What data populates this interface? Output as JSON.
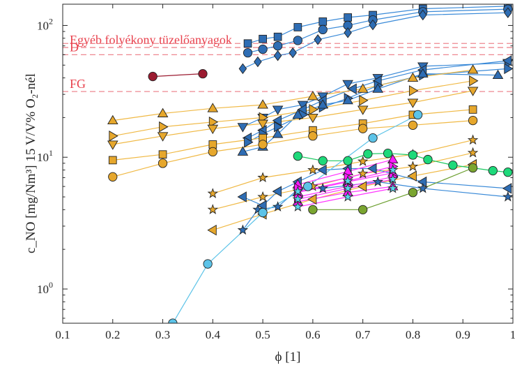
{
  "chart_data": {
    "type": "scatter",
    "xlabel": "ϕ [1]",
    "ylabel": "c_NO [mg/Nm³] 15 V/V% O₂-nél",
    "xlim": [
      0.1,
      1.0
    ],
    "ylim": [
      0.55,
      145
    ],
    "yscale": "log",
    "grid": false,
    "x_ticks": [
      "0.1",
      "0.2",
      "0.3",
      "0.4",
      "0.5",
      "0.6",
      "0.7",
      "0.8",
      "0.9",
      "1"
    ],
    "y_ticks": [
      {
        "value": 1,
        "label": "10",
        "exp": "0"
      },
      {
        "value": 10,
        "label": "10",
        "exp": "1"
      },
      {
        "value": 100,
        "label": "10",
        "exp": "2"
      }
    ],
    "reference_lines": [
      {
        "label": "Egyéb folyékony tüzelőanyagok",
        "y": 68,
        "color": "#ee8890",
        "text_color": "#e8404c"
      },
      {
        "label": "",
        "y": 73,
        "color": "#ee8890",
        "text_color": "#e8404c"
      },
      {
        "label": "D",
        "y": 60,
        "color": "#ee8890",
        "text_color": "#e8404c"
      },
      {
        "label": "FG",
        "y": 31.5,
        "color": "#ee8890",
        "text_color": "#e8404c"
      }
    ],
    "series": [
      {
        "marker": "square",
        "color": "#2e6db4",
        "line": "#3a8ad8",
        "x": [
          0.47,
          0.5,
          0.53,
          0.57,
          0.62,
          0.67,
          0.72,
          0.82,
          0.99
        ],
        "y": [
          73,
          79,
          82,
          97,
          107,
          115,
          120,
          134,
          140
        ]
      },
      {
        "marker": "circle",
        "color": "#2e6db4",
        "line": "#3a8ad8",
        "x": [
          0.47,
          0.5,
          0.53,
          0.57,
          0.62,
          0.67,
          0.72,
          0.82,
          0.99
        ],
        "y": [
          62,
          66,
          70,
          77,
          93,
          100,
          110,
          127,
          133
        ]
      },
      {
        "marker": "diamond",
        "color": "#2e6db4",
        "line": "#3a8ad8",
        "x": [
          0.46,
          0.49,
          0.53,
          0.56,
          0.61,
          0.67,
          0.72,
          0.82,
          0.99
        ],
        "y": [
          47,
          53,
          59,
          62,
          78,
          88,
          101,
          120,
          125
        ]
      },
      {
        "marker": "circle",
        "color": "#9b1b30",
        "line": "#9b1b30",
        "x": [
          0.28,
          0.38
        ],
        "y": [
          41,
          43
        ]
      },
      {
        "marker": "triangle-down",
        "color": "#2e6db4",
        "line": "#3a8ad8",
        "x": [
          0.46,
          0.5,
          0.53,
          0.58,
          0.62,
          0.67,
          0.73,
          0.82,
          0.99
        ],
        "y": [
          17,
          20,
          23,
          25,
          29,
          36,
          40,
          49,
          52
        ]
      },
      {
        "marker": "triangle-left",
        "color": "#2e6db4",
        "line": "#3a8ad8",
        "x": [
          0.47,
          0.5,
          0.53,
          0.58,
          0.62,
          0.68,
          0.73,
          0.82,
          0.99
        ],
        "y": [
          14,
          16,
          19,
          23,
          27,
          33,
          38,
          46,
          54
        ]
      },
      {
        "marker": "triangle-right",
        "color": "#2e6db4",
        "line": "#3a8ad8",
        "x": [
          0.47,
          0.5,
          0.53,
          0.58,
          0.62,
          0.67,
          0.73,
          0.82,
          0.99
        ],
        "y": [
          13,
          15,
          17,
          21,
          24,
          28,
          35,
          42,
          47
        ]
      },
      {
        "marker": "triangle-up",
        "color": "#2e6db4",
        "line": "#3a8ad8",
        "x": [
          0.46,
          0.5,
          0.53,
          0.57,
          0.62,
          0.67,
          0.73,
          0.82,
          0.97
        ],
        "y": [
          11,
          12,
          15,
          21,
          25,
          27,
          33,
          43,
          42
        ]
      },
      {
        "marker": "triangle-up",
        "color": "#e6a72c",
        "line": "#f0b945",
        "x": [
          0.2,
          0.3,
          0.4,
          0.5,
          0.6,
          0.7,
          0.8,
          0.92
        ],
        "y": [
          19,
          21.5,
          23.5,
          25,
          29,
          33,
          40,
          46
        ]
      },
      {
        "marker": "triangle-right",
        "color": "#e6a72c",
        "line": "#f0b945",
        "x": [
          0.2,
          0.3,
          0.4,
          0.5,
          0.6,
          0.7,
          0.8,
          0.92
        ],
        "y": [
          14.5,
          17,
          18.5,
          20,
          23,
          27,
          32,
          38
        ]
      },
      {
        "marker": "triangle-down",
        "color": "#e6a72c",
        "line": "#f0b945",
        "x": [
          0.2,
          0.3,
          0.4,
          0.5,
          0.6,
          0.7,
          0.8,
          0.92
        ],
        "y": [
          12.5,
          14.5,
          16.5,
          18,
          20,
          23,
          26,
          32
        ]
      },
      {
        "marker": "square",
        "color": "#e6a72c",
        "line": "#f0b945",
        "x": [
          0.2,
          0.3,
          0.4,
          0.5,
          0.6,
          0.7,
          0.8,
          0.92
        ],
        "y": [
          9.5,
          10.5,
          12.5,
          14,
          16,
          18,
          21,
          23
        ]
      },
      {
        "marker": "circle",
        "color": "#e6a72c",
        "line": "#f0b945",
        "x": [
          0.2,
          0.3,
          0.4,
          0.5,
          0.6,
          0.7,
          0.8,
          0.92
        ],
        "y": [
          7.1,
          9,
          11,
          12.5,
          14.5,
          16.5,
          17.5,
          19
        ]
      },
      {
        "marker": "triangle-left",
        "color": "#e6a72c",
        "line": "#f0b945",
        "x": [
          0.4,
          0.5,
          0.6,
          0.7,
          0.8,
          0.92
        ],
        "y": [
          2.8,
          3.7,
          4.8,
          6,
          7.2,
          8.8
        ]
      },
      {
        "marker": "star",
        "color": "#e6a72c",
        "line": "#f0b945",
        "x": [
          0.4,
          0.5,
          0.6,
          0.7,
          0.8,
          0.92
        ],
        "y": [
          4,
          5,
          6,
          7.5,
          8.5,
          10.8
        ]
      },
      {
        "marker": "star",
        "color": "#e6a72c",
        "line": "#f0b945",
        "x": [
          0.4,
          0.5,
          0.6,
          0.7,
          0.8,
          0.92
        ],
        "y": [
          5.3,
          7,
          8,
          9.3,
          10.5,
          13.5
        ]
      },
      {
        "marker": "triangle-left",
        "color": "#2e6db4",
        "line": "#3a8ad8",
        "x": [
          0.46,
          0.5,
          0.53,
          0.57,
          0.62,
          0.67,
          0.72,
          0.82,
          0.99
        ],
        "y": [
          5,
          4.3,
          5.5,
          6.5,
          8,
          8.2,
          8.2,
          6.5,
          5.8
        ]
      },
      {
        "marker": "star",
        "color": "#2e6db4",
        "line": "#3a8ad8",
        "x": [
          0.46,
          0.49,
          0.53,
          0.57,
          0.62,
          0.67,
          0.73,
          0.82,
          0.99
        ],
        "y": [
          2.8,
          4,
          4.2,
          5.7,
          5.8,
          6.1,
          6.5,
          5.8,
          5
        ]
      },
      {
        "marker": "circle",
        "color": "#1ed97a",
        "line": "#19c85f",
        "x": [
          0.57,
          0.62,
          0.67,
          0.71,
          0.75,
          0.8,
          0.83,
          0.88,
          0.96,
          0.99
        ],
        "y": [
          10.2,
          9.4,
          9.4,
          10.6,
          10.7,
          10.4,
          9.6,
          8.7,
          7.9,
          7.7
        ]
      },
      {
        "marker": "circle",
        "color": "#7aa530",
        "line": "#6a9e2d",
        "x": [
          0.6,
          0.7,
          0.8,
          0.92
        ],
        "y": [
          4,
          4,
          5.4,
          8.3
        ]
      },
      {
        "marker": "circle",
        "color": "#5cc3e8",
        "line": "#5cc3e8",
        "x": [
          0.32,
          0.39,
          0.5,
          0.59,
          0.72,
          0.81
        ],
        "y": [
          0.55,
          1.55,
          3.8,
          6,
          14,
          21
        ]
      },
      {
        "marker": "triangle-up",
        "color": "#ff1aff",
        "line": "#ff33ff",
        "x": [
          0.57,
          0.67,
          0.76
        ],
        "y": [
          4.6,
          5.4,
          6
        ]
      },
      {
        "marker": "triangle-up",
        "color": "#ff1aff",
        "line": "#ff33ff",
        "x": [
          0.57,
          0.67,
          0.76
        ],
        "y": [
          5.4,
          6.5,
          7.6
        ]
      },
      {
        "marker": "triangle-up",
        "color": "#ff1aff",
        "line": "#ff33ff",
        "x": [
          0.57,
          0.67,
          0.76
        ],
        "y": [
          6.2,
          7.8,
          9.6
        ]
      },
      {
        "marker": "triangle-right",
        "color": "#ff1aff",
        "line": "#ff33ff",
        "x": [
          0.57,
          0.67,
          0.76
        ],
        "y": [
          5,
          6,
          7.1
        ]
      },
      {
        "marker": "triangle-right",
        "color": "#ff1aff",
        "line": "#ff33ff",
        "x": [
          0.57,
          0.67,
          0.76
        ],
        "y": [
          5.8,
          7,
          8.5
        ]
      },
      {
        "marker": "star",
        "color": "#5ad4ec",
        "line": "#ff33ff",
        "x": [
          0.57,
          0.67,
          0.76
        ],
        "y": [
          4.2,
          5,
          5.8
        ]
      },
      {
        "marker": "star",
        "color": "#5ad4ec",
        "line": "#ff33ff",
        "x": [
          0.57,
          0.67,
          0.76
        ],
        "y": [
          4.8,
          5.8,
          6.8
        ]
      },
      {
        "marker": "star",
        "color": "#5ad4ec",
        "line": "#ff33ff",
        "x": [
          0.57,
          0.67,
          0.76
        ],
        "y": [
          5.5,
          6.6,
          8
        ]
      }
    ]
  }
}
